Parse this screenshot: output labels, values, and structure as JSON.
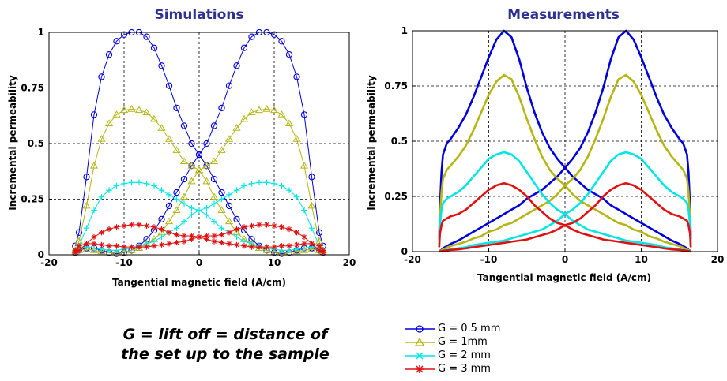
{
  "chart_data": [
    {
      "type": "line",
      "title": "Simulations",
      "xlabel": "Tangential magnetic field (A/cm)",
      "ylabel": "Incremental permeability",
      "xlim": [
        -20,
        20
      ],
      "ylim": [
        0,
        1
      ],
      "xticks": [
        "-20",
        "-10",
        "0",
        "10",
        "20"
      ],
      "yticks": [
        "0",
        "0.25",
        "0.5",
        "0.75",
        "1"
      ],
      "grid": true,
      "series": [
        {
          "name": "G = 0.5 mm",
          "color": "#0000dd",
          "marker": "circle",
          "x": [
            -16.5,
            -16,
            -15,
            -14,
            -13,
            -12,
            -11,
            -10,
            -9,
            -8,
            -7,
            -6,
            -5,
            -4,
            -3,
            -2,
            -1,
            0,
            1,
            2,
            3,
            4,
            5,
            6,
            7,
            8,
            9,
            10,
            11,
            12,
            13,
            14,
            15,
            16,
            16.5
          ],
          "y": [
            0.04,
            0.1,
            0.35,
            0.63,
            0.8,
            0.9,
            0.96,
            0.99,
            1.0,
            1.0,
            0.98,
            0.93,
            0.85,
            0.76,
            0.66,
            0.58,
            0.5,
            0.45,
            0.4,
            0.34,
            0.28,
            0.22,
            0.16,
            0.11,
            0.07,
            0.04,
            0.02,
            0.01,
            0.005,
            0.01,
            0.02,
            0.03,
            0.03,
            0.02,
            0.01
          ],
          "mirror": true
        },
        {
          "name": "G = 1mm",
          "color": "#b5b514",
          "marker": "triangle",
          "x": [
            -16.5,
            -16,
            -15,
            -14,
            -13,
            -12,
            -11,
            -10,
            -9,
            -8,
            -7,
            -6,
            -5,
            -4,
            -3,
            -2,
            -1,
            0,
            1,
            2,
            3,
            4,
            5,
            6,
            7,
            8,
            9,
            10,
            11,
            12,
            13,
            14,
            15,
            16,
            16.5
          ],
          "y": [
            0.02,
            0.06,
            0.22,
            0.4,
            0.52,
            0.59,
            0.63,
            0.65,
            0.655,
            0.65,
            0.64,
            0.61,
            0.57,
            0.52,
            0.47,
            0.42,
            0.4,
            0.38,
            0.33,
            0.26,
            0.2,
            0.15,
            0.1,
            0.07,
            0.05,
            0.03,
            0.02,
            0.01,
            0.01,
            0.01,
            0.015,
            0.02,
            0.025,
            0.02,
            0.01
          ],
          "mirror": true
        },
        {
          "name": "G = 2 mm",
          "color": "#00e5e5",
          "marker": "plus",
          "x": [
            -16.5,
            -16,
            -15,
            -14,
            -13,
            -12,
            -11,
            -10,
            -9,
            -8,
            -7,
            -6,
            -5,
            -4,
            -3,
            -2,
            -1,
            0,
            1,
            2,
            3,
            4,
            5,
            6,
            7,
            8,
            9,
            10,
            11,
            12,
            13,
            14,
            15,
            16,
            16.5
          ],
          "y": [
            0.02,
            0.04,
            0.12,
            0.2,
            0.26,
            0.29,
            0.31,
            0.32,
            0.325,
            0.325,
            0.32,
            0.31,
            0.29,
            0.27,
            0.25,
            0.23,
            0.21,
            0.2,
            0.18,
            0.15,
            0.12,
            0.1,
            0.08,
            0.06,
            0.05,
            0.04,
            0.03,
            0.025,
            0.02,
            0.02,
            0.025,
            0.03,
            0.035,
            0.03,
            0.02
          ],
          "mirror": true
        },
        {
          "name": "G = 3 mm",
          "color": "#e01010",
          "marker": "star",
          "x": [
            -16.5,
            -16,
            -15,
            -14,
            -13,
            -12,
            -11,
            -10,
            -9,
            -8,
            -7,
            -6,
            -5,
            -4,
            -3,
            -2,
            -1,
            0,
            1,
            2,
            3,
            4,
            5,
            6,
            7,
            8,
            9,
            10,
            11,
            12,
            13,
            14,
            15,
            16,
            16.5
          ],
          "y": [
            0.01,
            0.02,
            0.05,
            0.08,
            0.1,
            0.115,
            0.125,
            0.13,
            0.135,
            0.135,
            0.13,
            0.125,
            0.115,
            0.1,
            0.09,
            0.085,
            0.085,
            0.08,
            0.07,
            0.06,
            0.055,
            0.05,
            0.045,
            0.04,
            0.035,
            0.035,
            0.035,
            0.035,
            0.04,
            0.04,
            0.045,
            0.05,
            0.05,
            0.04,
            0.02
          ],
          "mirror": true
        }
      ]
    },
    {
      "type": "line",
      "title": "Measurements",
      "xlabel": "Tangential magnetic field (A/cm)",
      "ylabel": "Incremental permeability",
      "xlim": [
        -20,
        20
      ],
      "ylim": [
        0,
        1
      ],
      "xticks": [
        "-20",
        "-10",
        "0",
        "10",
        "20"
      ],
      "yticks": [
        "0",
        "0.25",
        "0.5",
        "0.75",
        "1"
      ],
      "grid": true,
      "series": [
        {
          "name": "G = 0.5 mm",
          "color": "#0000dd",
          "x": [
            -16.5,
            -16.4,
            -16.2,
            -16,
            -15.5,
            -15,
            -14,
            -13,
            -12,
            -11,
            -10,
            -9,
            -8,
            -7,
            -6,
            -5,
            -4,
            -3,
            -2,
            -1,
            0,
            1,
            2,
            3,
            4,
            5,
            6,
            7,
            8,
            9,
            10,
            11,
            12,
            13,
            14,
            15,
            15.5,
            16,
            16.2,
            16.4,
            16.5
          ],
          "y": [
            0.05,
            0.2,
            0.36,
            0.44,
            0.49,
            0.51,
            0.56,
            0.62,
            0.7,
            0.79,
            0.88,
            0.96,
            1.0,
            0.97,
            0.87,
            0.74,
            0.63,
            0.54,
            0.47,
            0.42,
            0.38,
            0.34,
            0.31,
            0.28,
            0.26,
            0.24,
            0.21,
            0.19,
            0.17,
            0.15,
            0.13,
            0.11,
            0.09,
            0.07,
            0.05,
            0.035,
            0.025,
            0.015,
            0.008,
            0.004,
            0.0
          ],
          "mirror": true
        },
        {
          "name": "G = 1mm",
          "color": "#b5b514",
          "x": [
            -16.5,
            -16.4,
            -16.2,
            -16,
            -15.5,
            -15,
            -14,
            -13,
            -12,
            -11,
            -10,
            -9,
            -8,
            -7,
            -6,
            -5,
            -4,
            -3,
            -2,
            -1,
            0,
            1,
            2,
            3,
            4,
            5,
            6,
            7,
            8,
            9,
            10,
            11,
            12,
            13,
            14,
            15,
            15.5,
            16,
            16.2,
            16.4,
            16.5
          ],
          "y": [
            0.03,
            0.15,
            0.27,
            0.33,
            0.37,
            0.39,
            0.43,
            0.48,
            0.55,
            0.63,
            0.71,
            0.77,
            0.8,
            0.78,
            0.7,
            0.6,
            0.51,
            0.43,
            0.37,
            0.33,
            0.3,
            0.26,
            0.23,
            0.21,
            0.19,
            0.17,
            0.15,
            0.13,
            0.12,
            0.1,
            0.09,
            0.07,
            0.06,
            0.045,
            0.035,
            0.025,
            0.018,
            0.01,
            0.006,
            0.003,
            0.0
          ],
          "mirror": true
        },
        {
          "name": "G = 2 mm",
          "color": "#00e5e5",
          "x": [
            -16.5,
            -16.4,
            -16.2,
            -16,
            -15.5,
            -15,
            -14,
            -13,
            -12,
            -11,
            -10,
            -9,
            -8,
            -7,
            -6,
            -5,
            -4,
            -3,
            -2,
            -1,
            0,
            1,
            2,
            3,
            4,
            5,
            6,
            7,
            8,
            9,
            10,
            11,
            12,
            13,
            14,
            15,
            15.5,
            16,
            16.2,
            16.4,
            16.5
          ],
          "y": [
            0.02,
            0.12,
            0.19,
            0.22,
            0.24,
            0.25,
            0.27,
            0.3,
            0.34,
            0.38,
            0.42,
            0.44,
            0.45,
            0.44,
            0.41,
            0.36,
            0.31,
            0.26,
            0.22,
            0.19,
            0.17,
            0.14,
            0.12,
            0.1,
            0.09,
            0.08,
            0.07,
            0.06,
            0.05,
            0.045,
            0.04,
            0.035,
            0.03,
            0.02,
            0.015,
            0.01,
            0.008,
            0.005,
            0.003,
            0.002,
            0.0
          ],
          "mirror": true
        },
        {
          "name": "G = 3 mm",
          "color": "#e01010",
          "x": [
            -16.5,
            -16.4,
            -16.2,
            -16,
            -15.5,
            -15,
            -14,
            -13,
            -12,
            -11,
            -10,
            -9,
            -8,
            -7,
            -6,
            -5,
            -4,
            -3,
            -2,
            -1,
            0,
            1,
            2,
            3,
            4,
            5,
            6,
            7,
            8,
            9,
            10,
            11,
            12,
            13,
            14,
            15,
            15.5,
            16,
            16.2,
            16.4,
            16.5
          ],
          "y": [
            0.02,
            0.08,
            0.12,
            0.14,
            0.15,
            0.16,
            0.17,
            0.19,
            0.22,
            0.25,
            0.28,
            0.3,
            0.31,
            0.3,
            0.28,
            0.25,
            0.21,
            0.18,
            0.15,
            0.13,
            0.12,
            0.1,
            0.085,
            0.075,
            0.065,
            0.055,
            0.05,
            0.045,
            0.04,
            0.035,
            0.03,
            0.025,
            0.02,
            0.015,
            0.01,
            0.008,
            0.006,
            0.004,
            0.002,
            0.001,
            0.0
          ],
          "mirror": true
        }
      ]
    }
  ],
  "note": {
    "line1": "G = lift off = distance of",
    "line2": "the set up to the sample"
  },
  "legend": [
    {
      "label": "G = 0.5 mm",
      "color": "#0000dd",
      "marker": "circle"
    },
    {
      "label": "G = 1mm",
      "color": "#b5b514",
      "marker": "triangle"
    },
    {
      "label": "G = 2 mm",
      "color": "#00e5e5",
      "marker": "cross"
    },
    {
      "label": "G = 3 mm",
      "color": "#e01010",
      "marker": "star"
    }
  ]
}
